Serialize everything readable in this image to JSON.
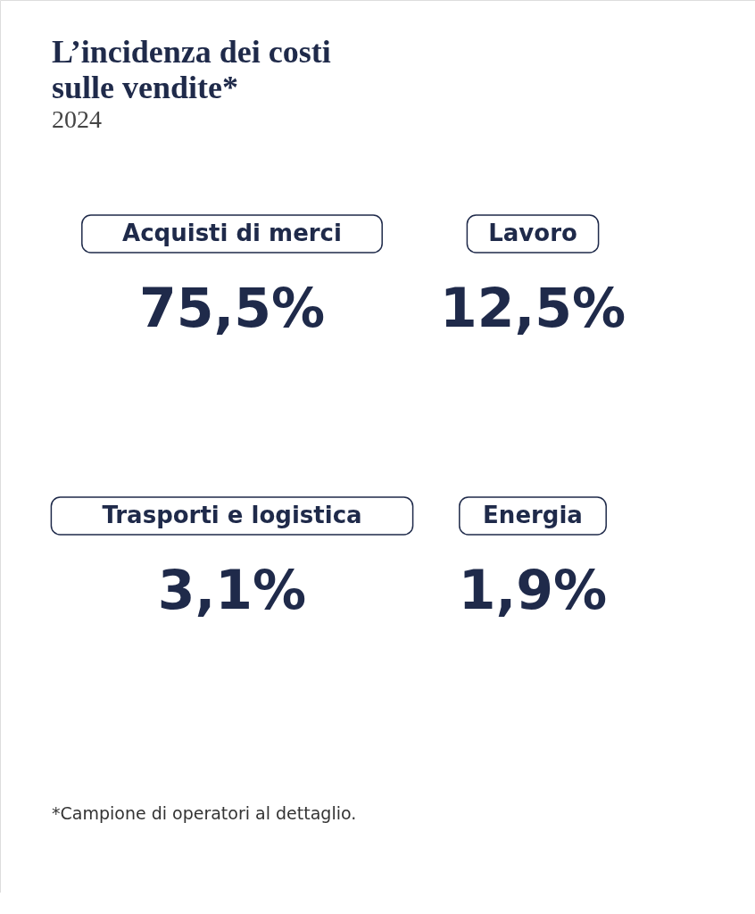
{
  "chart_data": {
    "type": "other",
    "title": "L’incidenza dei costi sulle vendite*",
    "subtitle": "2024",
    "categories": [
      "Acquisti di merci",
      "Lavoro",
      "Trasporti e logistica",
      "Energia"
    ],
    "values": [
      75.5,
      12.5,
      3.1,
      1.9
    ],
    "value_labels": [
      "75,5%",
      "12,5%",
      "3,1%",
      "1,9%"
    ],
    "color": "#1f2a4a",
    "annotations": [
      "*Campione di operatori al dettaglio."
    ]
  }
}
